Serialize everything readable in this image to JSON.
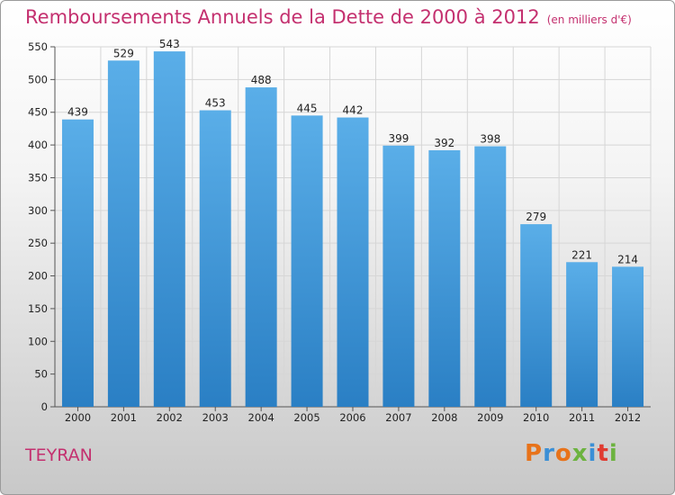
{
  "header": {
    "title": "Remboursements Annuels de la Dette de 2000 à 2012",
    "unit": "(en milliers d'€)"
  },
  "footer": {
    "commune": "TEYRAN",
    "logo": "Proxiti"
  },
  "colors": {
    "title": "#c4306f",
    "bar_top": "#5aaee8",
    "bar_bottom": "#2a7fc4"
  },
  "chart_data": {
    "type": "bar",
    "title": "Remboursements Annuels de la Dette de 2000 à 2012",
    "categories": [
      "2000",
      "2001",
      "2002",
      "2003",
      "2004",
      "2005",
      "2006",
      "2007",
      "2008",
      "2009",
      "2010",
      "2011",
      "2012"
    ],
    "values": [
      439,
      529,
      543,
      453,
      488,
      445,
      442,
      399,
      392,
      398,
      279,
      221,
      214
    ],
    "ylim": [
      0,
      550
    ],
    "yticks": [
      0,
      50,
      100,
      150,
      200,
      250,
      300,
      350,
      400,
      450,
      500,
      550
    ],
    "grid": true,
    "xlabel": "",
    "ylabel": ""
  }
}
